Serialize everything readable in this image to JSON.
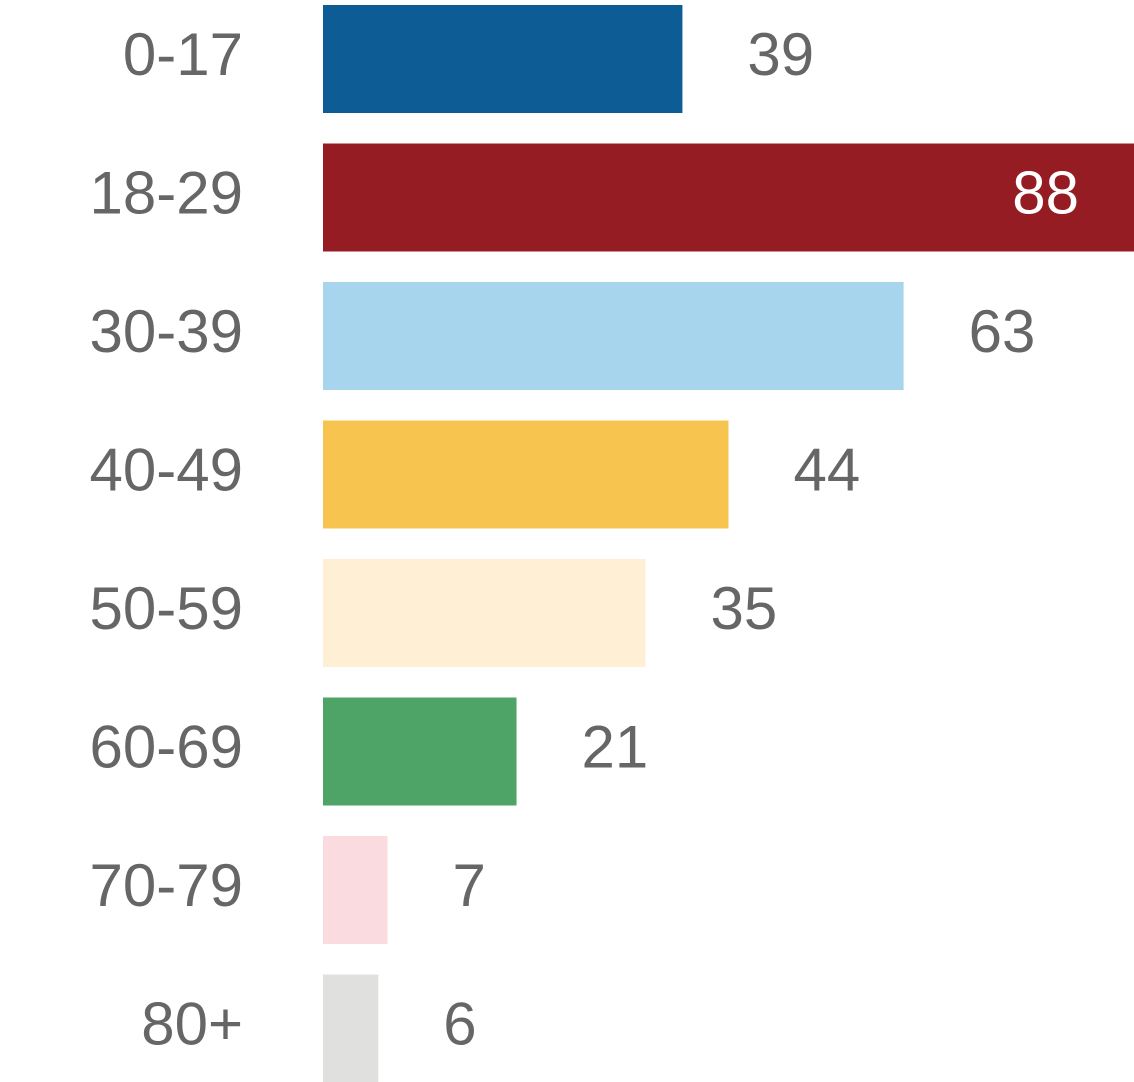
{
  "chart_data": {
    "type": "bar",
    "orientation": "horizontal",
    "categories": [
      "0-17",
      "18-29",
      "30-39",
      "40-49",
      "50-59",
      "60-69",
      "70-79",
      "80+"
    ],
    "values": [
      39,
      88,
      63,
      44,
      35,
      21,
      7,
      6
    ],
    "colors": [
      "#0d5c96",
      "#961c23",
      "#a6d5ed",
      "#f7c44f",
      "#fff0d5",
      "#4ea467",
      "#fadbe0",
      "#e0e0de"
    ]
  }
}
